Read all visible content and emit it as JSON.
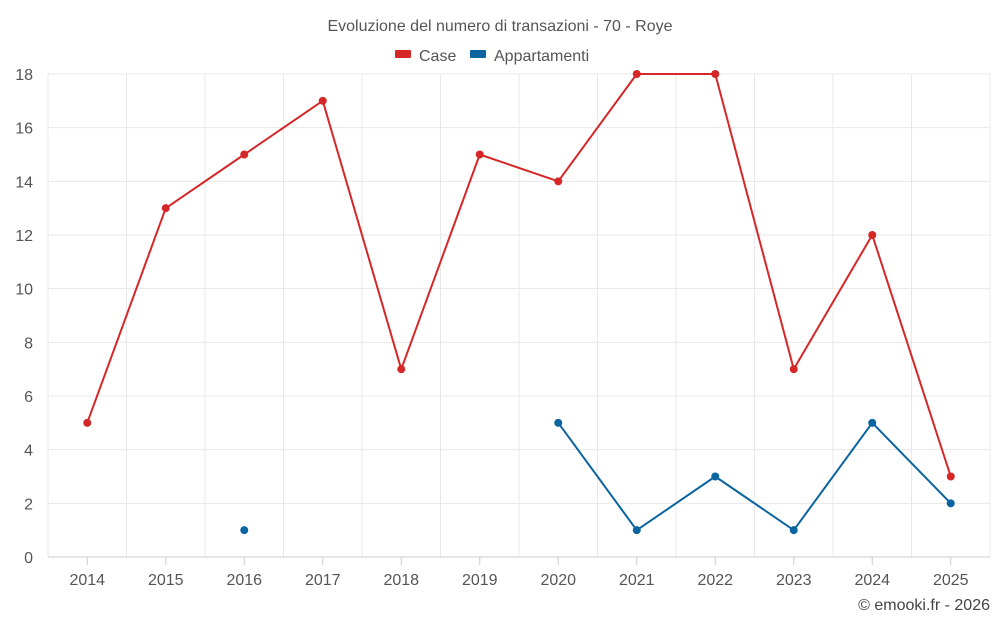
{
  "chart_data": {
    "type": "line",
    "title": "Evoluzione del numero di transazioni - 70 - Roye",
    "categories": [
      "2014",
      "2015",
      "2016",
      "2017",
      "2018",
      "2019",
      "2020",
      "2021",
      "2022",
      "2023",
      "2024",
      "2025"
    ],
    "ylim": [
      0,
      18
    ],
    "yticks": [
      0,
      2,
      4,
      6,
      8,
      10,
      12,
      14,
      16,
      18
    ],
    "grid": true,
    "legend_position": "top-center",
    "series": [
      {
        "name": "Case",
        "color": "#d62728",
        "values": [
          5,
          13,
          15,
          17,
          7,
          15,
          14,
          18,
          18,
          7,
          12,
          3
        ]
      },
      {
        "name": "Appartamenti",
        "color": "#0a64a0",
        "values": [
          null,
          null,
          1,
          null,
          null,
          null,
          5,
          1,
          3,
          1,
          5,
          2
        ]
      }
    ]
  },
  "credit": "© emooki.fr - 2026"
}
